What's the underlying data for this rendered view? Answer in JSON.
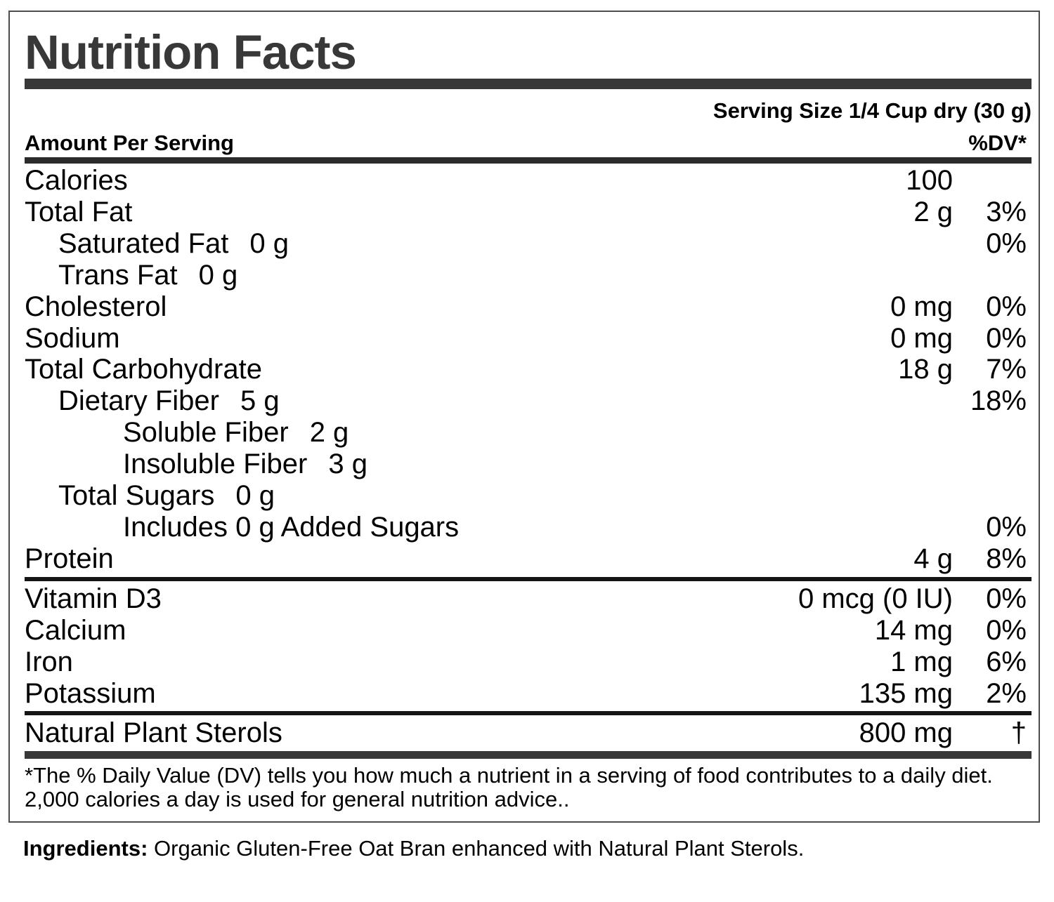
{
  "title": "Nutrition Facts",
  "serving_size": "Serving Size 1/4 Cup dry (30 g)",
  "header": {
    "amount_per_serving": "Amount Per Serving",
    "dv": "%DV*"
  },
  "rows": [
    {
      "label": "Calories",
      "amount": "100",
      "dv": ""
    },
    {
      "label": "Total Fat",
      "amount": "2 g",
      "dv": "3%"
    },
    {
      "label": "Saturated Fat",
      "inline": "0 g",
      "amount": "",
      "dv": "0%"
    },
    {
      "label": "Trans Fat",
      "inline": "0 g",
      "amount": "",
      "dv": ""
    },
    {
      "label": "Cholesterol",
      "amount": "0 mg",
      "dv": "0%"
    },
    {
      "label": "Sodium",
      "amount": "0 mg",
      "dv": "0%"
    },
    {
      "label": "Total Carbohydrate",
      "amount": "18 g",
      "dv": "7%"
    },
    {
      "label": "Dietary Fiber",
      "inline": "5 g",
      "amount": "",
      "dv": "18%"
    },
    {
      "label": "Soluble Fiber",
      "inline": "2 g",
      "amount": "",
      "dv": ""
    },
    {
      "label": "Insoluble Fiber",
      "inline": "3 g",
      "amount": "",
      "dv": ""
    },
    {
      "label": "Total Sugars",
      "inline": "0 g",
      "amount": "",
      "dv": ""
    },
    {
      "label": "Includes 0 g Added Sugars",
      "amount": "",
      "dv": "0%"
    },
    {
      "label": "Protein",
      "amount": "4 g",
      "dv": "8%"
    }
  ],
  "micronutrients": [
    {
      "label": "Vitamin D3",
      "amount": "0 mcg (0 IU)",
      "dv": "0%"
    },
    {
      "label": "Calcium",
      "amount": "14 mg",
      "dv": "0%"
    },
    {
      "label": "Iron",
      "amount": "1 mg",
      "dv": "6%"
    },
    {
      "label": "Potassium",
      "amount": "135 mg",
      "dv": "2%"
    }
  ],
  "sterols": {
    "label": "Natural Plant Sterols",
    "amount": "800 mg",
    "dv": "†"
  },
  "footnote": "*The % Daily Value (DV) tells you how much a nutrient in a serving of food contributes to a daily diet. 2,000 calories a day is used for general nutrition advice..",
  "ingredients": {
    "label": "Ingredients:",
    "text": " Organic Gluten-Free Oat Bran enhanced with Natural Plant Sterols."
  },
  "colors": {
    "text": "#000000",
    "accent_dark": "#383838",
    "border": "#4d4d4d"
  }
}
